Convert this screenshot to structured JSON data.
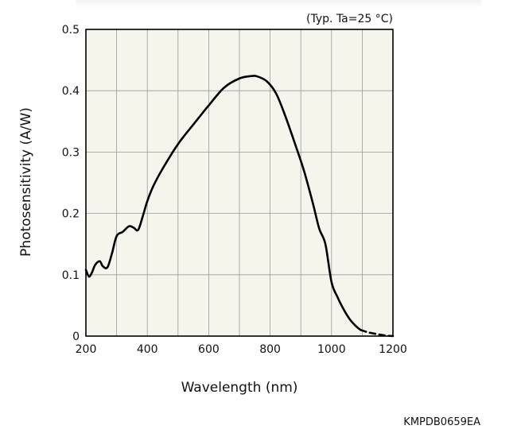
{
  "chart_data": {
    "type": "line",
    "title": "",
    "condition_note": "(Typ. Ta=25 °C)",
    "xlabel": "Wavelength (nm)",
    "ylabel": "Photosensitivity (A/W)",
    "figure_code": "KMPDB0659EA",
    "xlim": [
      200,
      1200
    ],
    "ylim": [
      0,
      0.5
    ],
    "x_ticks": [
      200,
      400,
      600,
      800,
      1000,
      1200
    ],
    "x_tick_labels": [
      "200",
      "400",
      "600",
      "800",
      "1000",
      "1200"
    ],
    "y_ticks": [
      0,
      0.1,
      0.2,
      0.3,
      0.4,
      0.5
    ],
    "y_tick_labels": [
      "0",
      "0.1",
      "0.2",
      "0.3",
      "0.4",
      "0.5"
    ],
    "grid": true,
    "x_grid_step": 100,
    "y_grid_step": 0.1,
    "plot_background": "#f5f5ec",
    "line_color": "#000000",
    "series": [
      {
        "style": "solid",
        "x": [
          200,
          210,
          220,
          230,
          245,
          255,
          270,
          285,
          300,
          320,
          340,
          355,
          370,
          385,
          400,
          420,
          450,
          500,
          550,
          600,
          650,
          700,
          740,
          760,
          790,
          820,
          850,
          880,
          910,
          940,
          960,
          980,
          1000,
          1020,
          1040,
          1060,
          1080,
          1095
        ],
        "y": [
          0.108,
          0.097,
          0.104,
          0.116,
          0.122,
          0.114,
          0.112,
          0.135,
          0.163,
          0.17,
          0.179,
          0.177,
          0.173,
          0.195,
          0.22,
          0.245,
          0.273,
          0.313,
          0.345,
          0.376,
          0.405,
          0.42,
          0.424,
          0.423,
          0.415,
          0.395,
          0.358,
          0.315,
          0.27,
          0.215,
          0.175,
          0.15,
          0.088,
          0.063,
          0.043,
          0.027,
          0.016,
          0.01
        ]
      },
      {
        "style": "dashed",
        "x": [
          1095,
          1120,
          1150,
          1175,
          1200
        ],
        "y": [
          0.01,
          0.006,
          0.003,
          0.001,
          0.0
        ]
      }
    ]
  }
}
